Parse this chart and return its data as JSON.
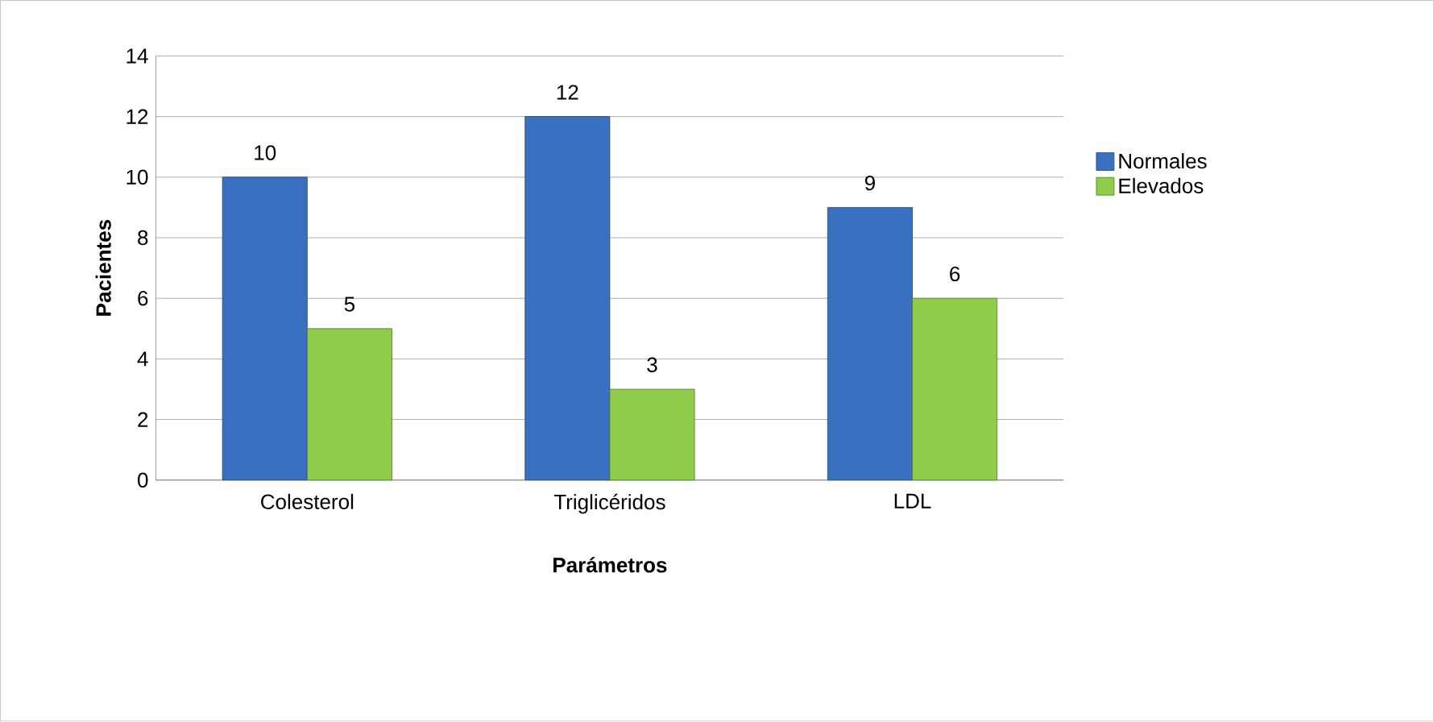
{
  "chart_data": {
    "type": "bar",
    "xlabel": "Parámetros",
    "ylabel": "Pacientes",
    "categories": [
      "Colesterol",
      "Triglicéridos",
      "LDL"
    ],
    "series": [
      {
        "name": "Normales",
        "color": "#3a70c0",
        "values": [
          10,
          12,
          9
        ]
      },
      {
        "name": "Elevados",
        "color": "#8fcc4a",
        "values": [
          5,
          3,
          6
        ]
      }
    ],
    "ylim": [
      0,
      14
    ],
    "yticks": [
      0,
      2,
      4,
      6,
      8,
      10,
      12,
      14
    ],
    "grid": "y",
    "legend": "right",
    "data_labels": true
  }
}
